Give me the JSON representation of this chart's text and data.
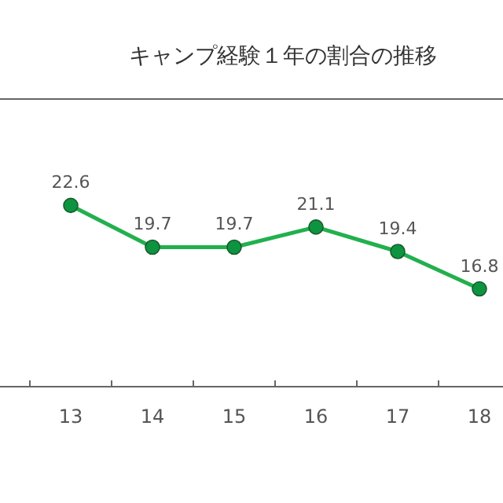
{
  "chart_data": {
    "type": "line",
    "title": "キャンプ経験１年の割合の推移",
    "categories": [
      "13",
      "14",
      "15",
      "16",
      "17",
      "18"
    ],
    "series": [
      {
        "color": "#22b04e",
        "values": [
          22.6,
          19.7,
          19.7,
          21.1,
          19.4,
          16.8
        ]
      }
    ],
    "ylim": [
      10,
      30
    ],
    "data_labels": true,
    "marker": "circle"
  }
}
